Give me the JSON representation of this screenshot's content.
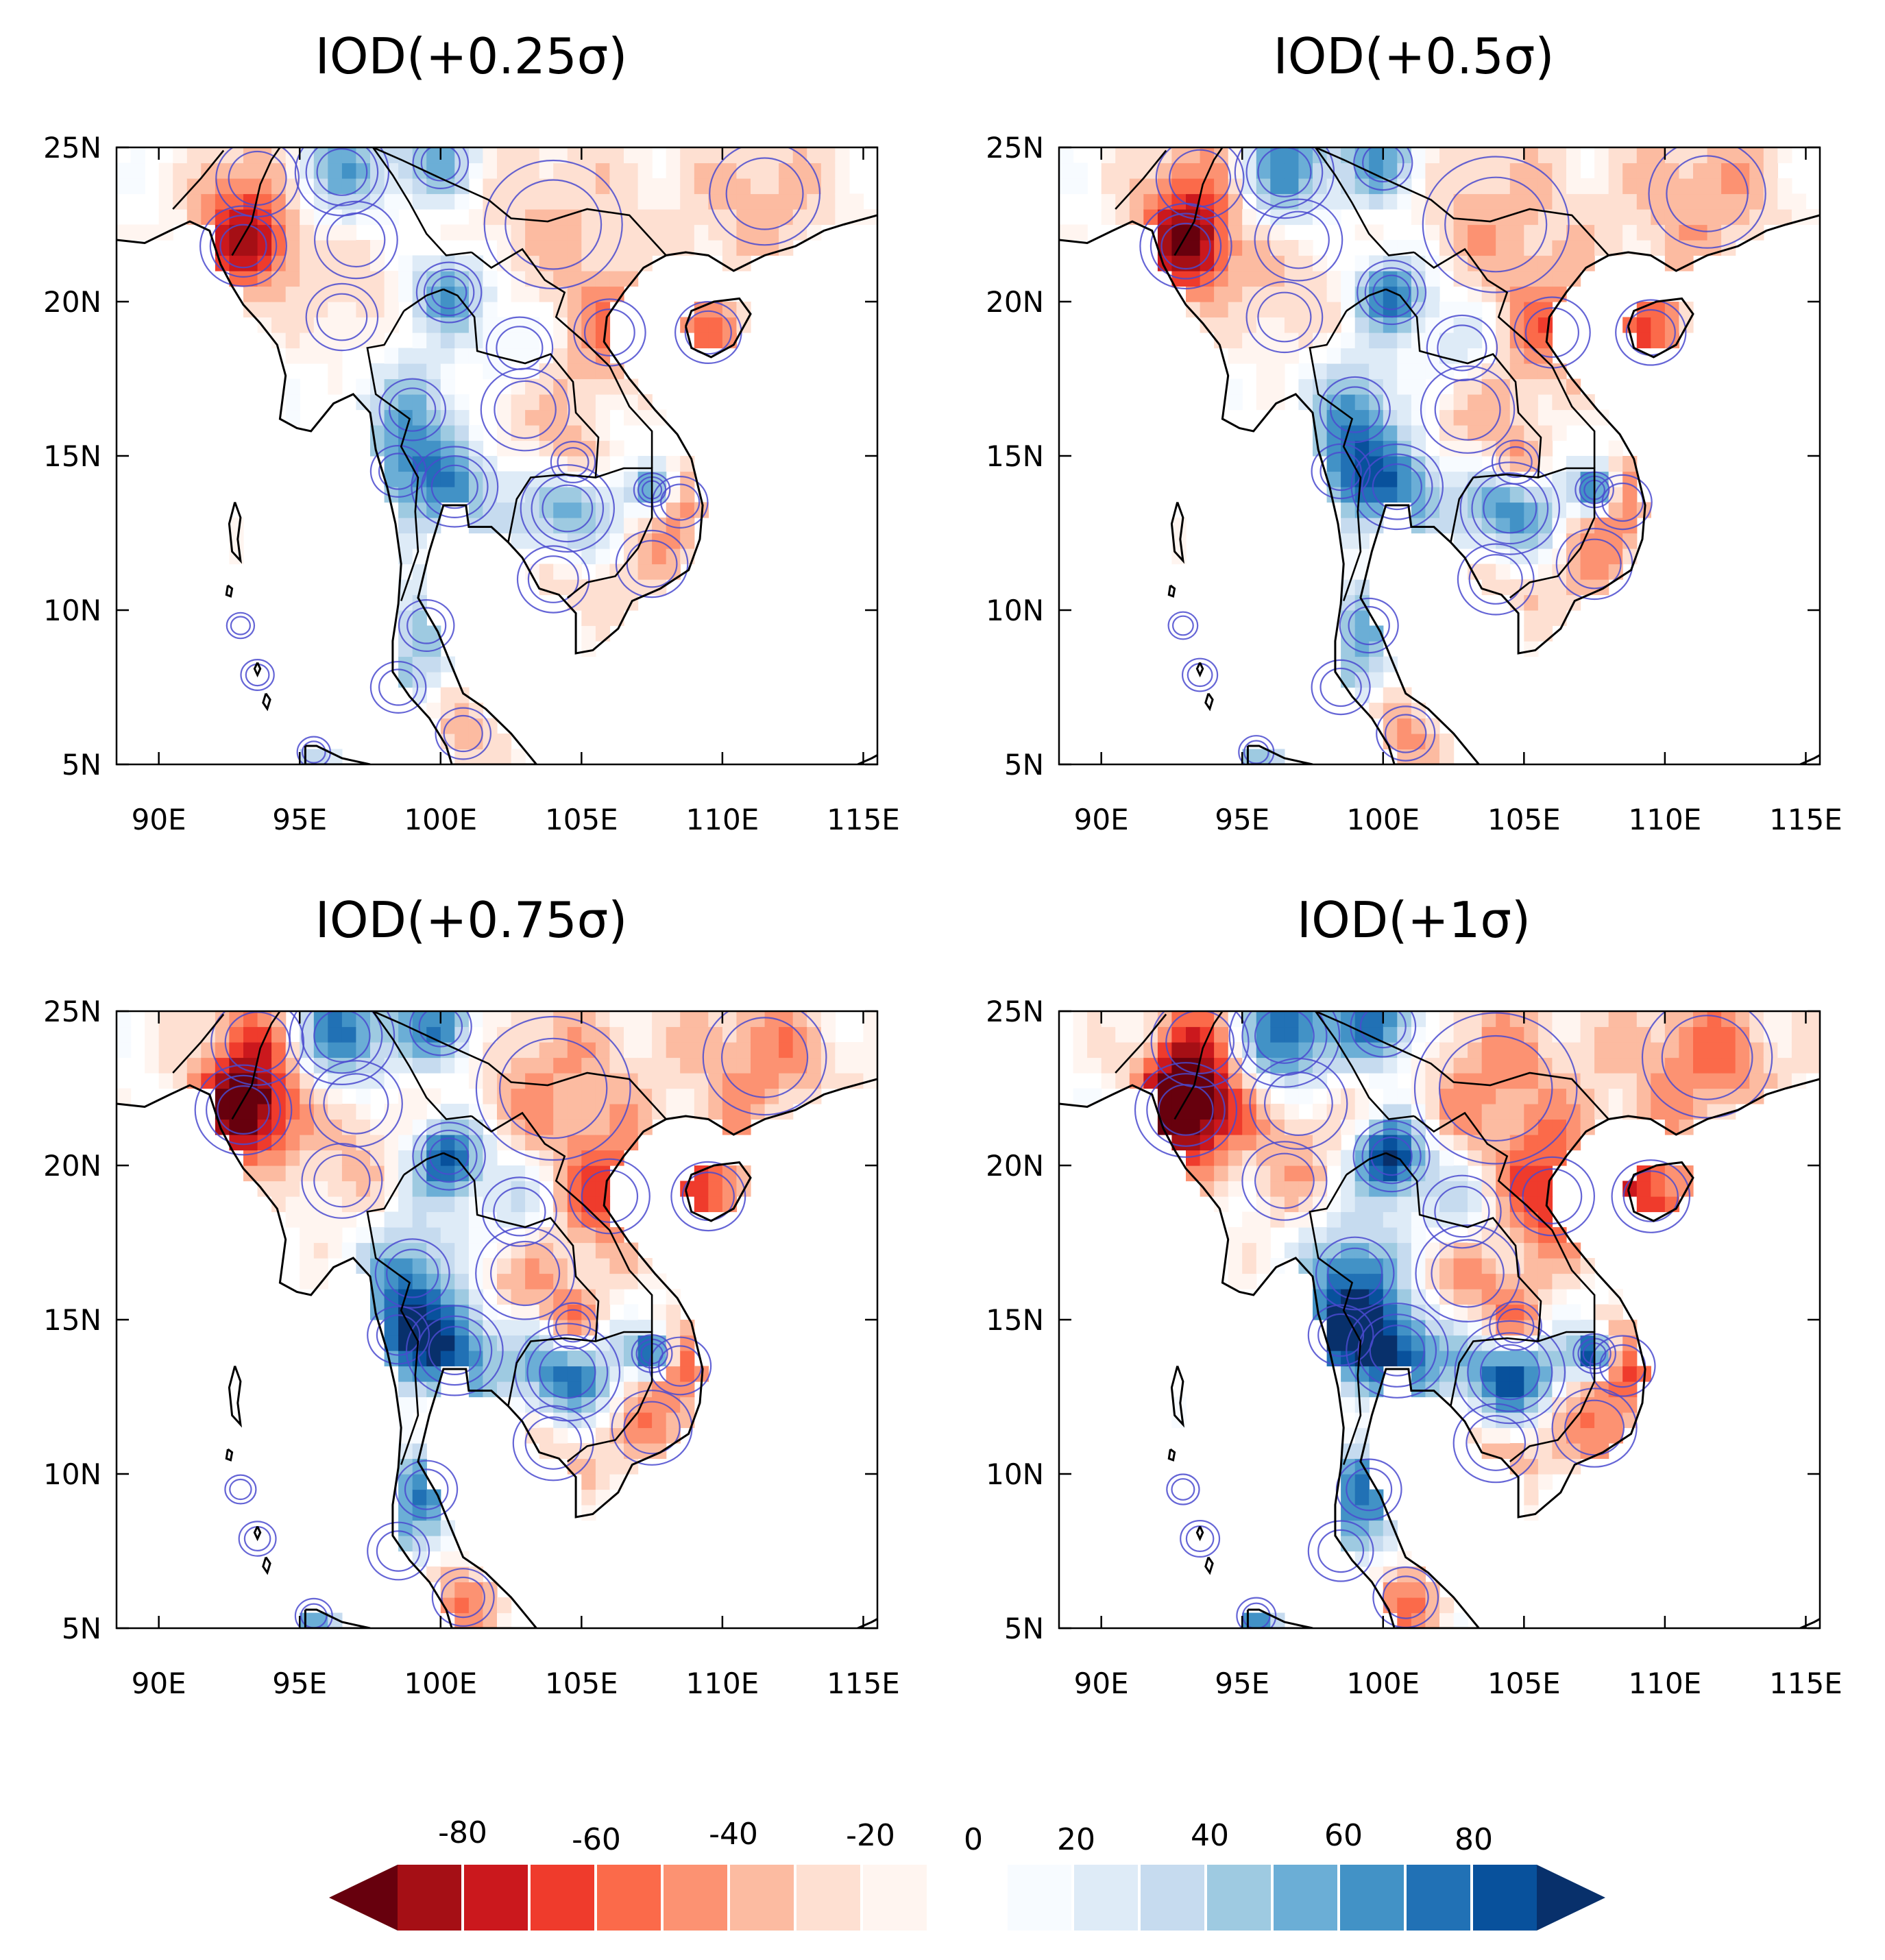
{
  "panels": [
    {
      "id": "p1",
      "title": "IOD(+0.25σ)",
      "intensity": 0.25
    },
    {
      "id": "p2",
      "title": "IOD(+0.5σ)",
      "intensity": 0.5
    },
    {
      "id": "p3",
      "title": "IOD(+0.75σ)",
      "intensity": 0.75
    },
    {
      "id": "p4",
      "title": "IOD(+1σ)",
      "intensity": 1.0
    }
  ],
  "axes": {
    "lon_labels": [
      "90E",
      "95E",
      "100E",
      "105E",
      "110E",
      "115E"
    ],
    "lon_values": [
      90,
      95,
      100,
      105,
      110,
      115
    ],
    "lat_labels": [
      "25N",
      "20N",
      "15N",
      "10N",
      "5N"
    ],
    "lat_values": [
      25,
      20,
      15,
      10,
      5
    ],
    "lon_range": [
      88.5,
      115.5
    ],
    "lat_range": [
      5,
      25
    ]
  },
  "colorbar": {
    "labels": [
      "-80",
      "-60",
      "-40",
      "-20",
      "0",
      "20",
      "40",
      "60",
      "80"
    ],
    "red_colors": [
      "#67000d",
      "#a50f15",
      "#cb181d",
      "#ef3b2c",
      "#fb6a4a",
      "#fc9272",
      "#fcbba1",
      "#fee0d2",
      "#fff5f0"
    ],
    "blue_colors": [
      "#f7fbff",
      "#deebf7",
      "#c6dbef",
      "#9ecae1",
      "#6baed6",
      "#4292c6",
      "#2171b5",
      "#08519c",
      "#08306b"
    ]
  }
}
